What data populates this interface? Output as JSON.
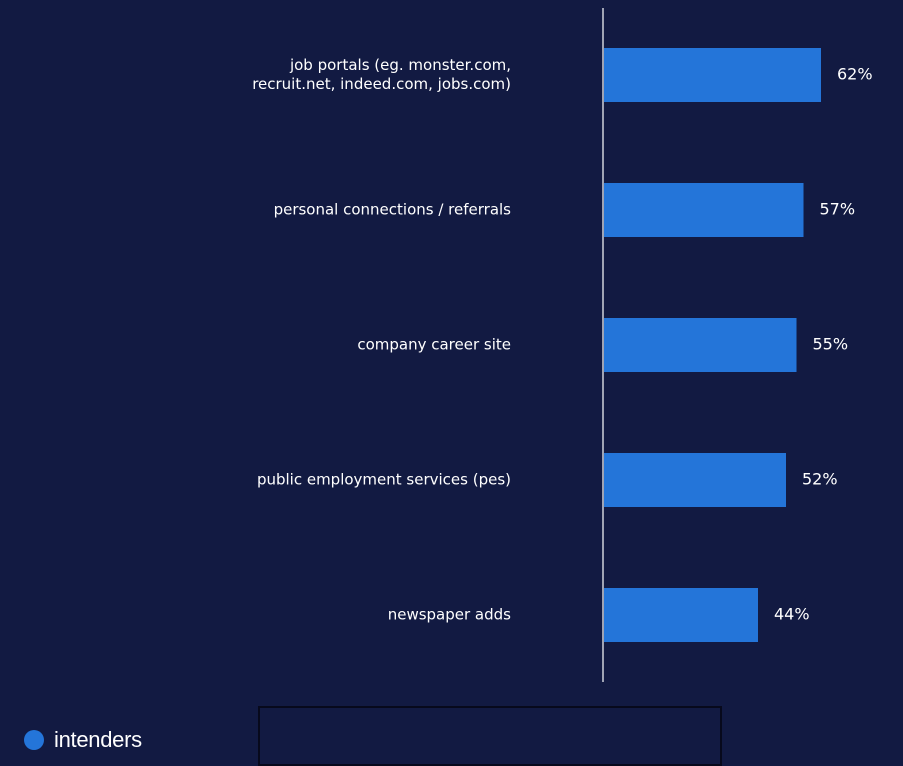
{
  "chart_data": {
    "type": "bar",
    "orientation": "horizontal",
    "categories": [
      [
        "job portals (eg. monster.com,",
        "recruit.net, indeed.com, jobs.com)"
      ],
      [
        "personal connections / referrals"
      ],
      [
        "company career site"
      ],
      [
        "public employment services (pes)"
      ],
      [
        "newspaper adds"
      ]
    ],
    "series": [
      {
        "name": "intenders",
        "values": [
          62,
          57,
          55,
          52,
          44
        ],
        "labels": [
          "62%",
          "57%",
          "55%",
          "52%",
          "44%"
        ],
        "color": "#2475d9"
      }
    ],
    "xlim": [
      0,
      100
    ],
    "grid": false,
    "legend_position": "bottom-left"
  },
  "colors": {
    "background": "#121a42",
    "bar": "#2475d9",
    "text": "#ffffff",
    "axis": "#ffffff"
  },
  "legend": {
    "label": "intenders"
  }
}
